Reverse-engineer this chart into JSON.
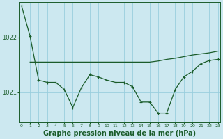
{
  "bg_color": "#cce8f0",
  "grid_color": "#99cedd",
  "line_color": "#1a5c2a",
  "xlabel": "Graphe pression niveau de la mer (hPa)",
  "xlabel_fontsize": 7,
  "ylabel_values": [
    1021,
    1022
  ],
  "xlim": [
    -0.3,
    23.3
  ],
  "ylim": [
    1020.45,
    1022.65
  ],
  "line1_x": [
    0,
    1,
    2,
    3,
    4,
    5,
    6,
    7,
    8,
    9,
    10,
    11,
    12,
    13,
    14,
    15,
    16,
    17,
    18,
    19,
    20,
    21,
    22,
    23
  ],
  "line1_y": [
    1022.58,
    1022.02,
    1021.22,
    1021.18,
    1021.18,
    1021.05,
    1020.72,
    1021.08,
    1021.32,
    1021.28,
    1021.22,
    1021.18,
    1021.18,
    1021.1,
    1020.82,
    1020.82,
    1020.62,
    1020.62,
    1021.05,
    1021.28,
    1021.38,
    1021.52,
    1021.58,
    1021.6
  ],
  "line2_x": [
    1,
    2,
    3,
    4,
    5,
    6,
    7,
    8,
    9,
    10,
    11,
    12,
    13,
    14,
    15,
    16,
    17,
    18,
    19,
    20,
    21,
    22,
    23
  ],
  "line2_y": [
    1021.55,
    1021.55,
    1021.55,
    1021.55,
    1021.55,
    1021.55,
    1021.55,
    1021.55,
    1021.55,
    1021.55,
    1021.55,
    1021.55,
    1021.55,
    1021.55,
    1021.55,
    1021.57,
    1021.6,
    1021.62,
    1021.65,
    1021.68,
    1021.7,
    1021.72,
    1021.75
  ],
  "tick_labels": [
    "0",
    "1",
    "2",
    "3",
    "4",
    "5",
    "6",
    "7",
    "8",
    "9",
    "10",
    "11",
    "12",
    "13",
    "14",
    "15",
    "16",
    "17",
    "18",
    "19",
    "20",
    "21",
    "22",
    "23"
  ]
}
